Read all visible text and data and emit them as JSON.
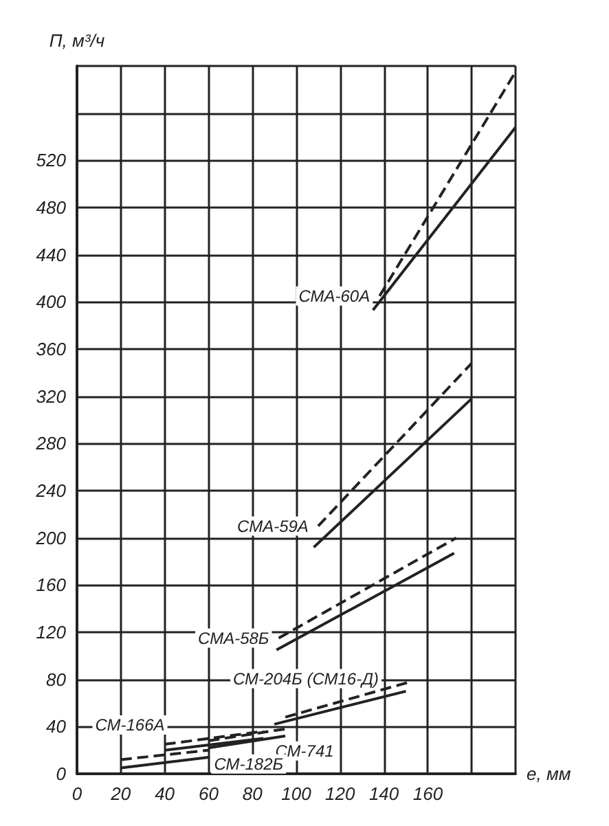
{
  "chart_data": {
    "type": "line",
    "xlabel": "е, мм",
    "ylabel": "П, м³/ч",
    "xlim": [
      0,
      200
    ],
    "ylim": [
      0,
      600
    ],
    "xticks": [
      0,
      20,
      40,
      60,
      80,
      100,
      120,
      140,
      160,
      {
        "value": 180,
        "label": null
      },
      {
        "value": 200,
        "label": null
      }
    ],
    "yticks": [
      0,
      40,
      80,
      120,
      160,
      200,
      240,
      280,
      320,
      360,
      400,
      440,
      480,
      520,
      {
        "value": 560,
        "label": null
      },
      {
        "value": 600,
        "label": null
      }
    ],
    "grid": true,
    "marker": "none",
    "series": [
      {
        "name": "СМА-60А",
        "color": "#222222",
        "line_style": "dashed",
        "x": [
          138,
          200
        ],
        "values": [
          405,
          595
        ]
      },
      {
        "color": "#222222",
        "line_style": "solid",
        "x": [
          135,
          200
        ],
        "values": [
          393,
          548
        ]
      },
      {
        "name": "СМА-59А",
        "color": "#222222",
        "line_style": "dashed",
        "x": [
          110,
          180
        ],
        "values": [
          210,
          348
        ]
      },
      {
        "color": "#222222",
        "line_style": "solid",
        "x": [
          108,
          180
        ],
        "values": [
          192,
          318
        ]
      },
      {
        "name": "СМА-58Б",
        "color": "#222222",
        "line_style": "dashed",
        "x": [
          92,
          173
        ],
        "values": [
          115,
          200
        ]
      },
      {
        "color": "#222222",
        "line_style": "solid",
        "x": [
          91,
          172
        ],
        "values": [
          105,
          187
        ]
      },
      {
        "name": "СМ-204Б (СМ16-Д)",
        "color": "#222222",
        "line_style": "dashed",
        "x": [
          95,
          152
        ],
        "values": [
          48,
          78
        ]
      },
      {
        "color": "#222222",
        "line_style": "solid",
        "x": [
          90,
          150
        ],
        "values": [
          42,
          70
        ]
      },
      {
        "name": "СМ-166А",
        "color": "#222222",
        "line_style": "dashed",
        "x": [
          40,
          85
        ],
        "values": [
          25,
          36
        ]
      },
      {
        "color": "#222222",
        "line_style": "solid",
        "x": [
          40,
          85
        ],
        "values": [
          20,
          30
        ]
      },
      {
        "name": "СМ-741",
        "color": "#222222",
        "line_style": "dashed",
        "x": [
          60,
          95
        ],
        "values": [
          28,
          38
        ]
      },
      {
        "color": "#222222",
        "line_style": "solid",
        "x": [
          60,
          95
        ],
        "values": [
          22,
          32
        ]
      },
      {
        "name": "СМ-182Б",
        "color": "#222222",
        "line_style": "dashed",
        "x": [
          20,
          60
        ],
        "values": [
          12,
          20
        ]
      },
      {
        "color": "#222222",
        "line_style": "solid",
        "x": [
          20,
          60
        ],
        "values": [
          5,
          14
        ]
      }
    ]
  }
}
